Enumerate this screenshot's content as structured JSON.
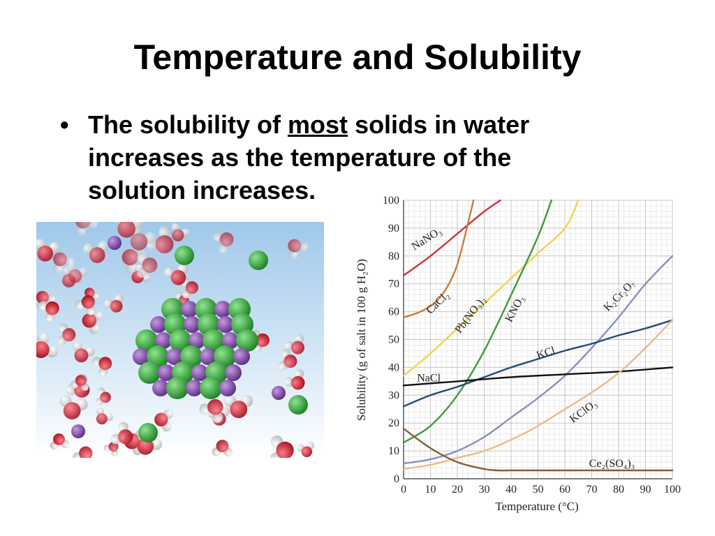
{
  "slide": {
    "title": "Temperature and Solubility",
    "bullet": {
      "symbol": "•",
      "text_before": "The solubility of",
      "emphasis": "most",
      "text_after": "solids in water increases as the temperature of the solution increases."
    }
  },
  "illustration": {
    "description_icon": "dissolving-ionic-crystal-icon",
    "colors": {
      "background_top": "#9fc8ea",
      "background_bottom": "#ffffff",
      "cation": "#8a45b6",
      "anion": "#2fae35",
      "oxygen": "#d51f30",
      "hydrogen": "#f2f2f2"
    }
  },
  "chart_data": {
    "type": "line",
    "xlabel": "Temperature (°C)",
    "ylabel": "Solubility (g of salt in 100 g H₂O)",
    "xlim": [
      0,
      100
    ],
    "ylim": [
      0,
      100
    ],
    "xticks": [
      0,
      10,
      20,
      30,
      40,
      50,
      60,
      70,
      80,
      90,
      100
    ],
    "yticks": [
      0,
      10,
      20,
      30,
      40,
      50,
      60,
      70,
      80,
      90,
      100
    ],
    "grid": true,
    "legend": "none (series labeled inline)",
    "series": [
      {
        "name": "NaNO₃",
        "color": "#c8363c",
        "x": [
          0,
          10,
          20,
          30,
          36
        ],
        "y": [
          73,
          80,
          88,
          96,
          100
        ]
      },
      {
        "name": "CaCl₂",
        "color": "#cf7a34",
        "x": [
          0,
          5,
          10,
          15,
          20,
          25,
          26
        ],
        "y": [
          58,
          59.5,
          62,
          67,
          77,
          96,
          100
        ]
      },
      {
        "name": "Pb(NO₃)₂",
        "color": "#f2d34c",
        "x": [
          0,
          10,
          20,
          30,
          40,
          50,
          60,
          65
        ],
        "y": [
          37,
          45,
          54,
          63,
          72,
          81,
          90,
          100
        ]
      },
      {
        "name": "KNO₃",
        "color": "#3e9a3a",
        "x": [
          0,
          10,
          20,
          30,
          40,
          50,
          55
        ],
        "y": [
          13,
          19,
          30,
          46,
          66,
          87,
          100
        ]
      },
      {
        "name": "K₂Cr₂O₇",
        "color": "#8a8fc0",
        "x": [
          0,
          10,
          20,
          30,
          40,
          50,
          60,
          70,
          80,
          90,
          100
        ],
        "y": [
          5.5,
          7,
          10,
          15,
          22,
          29,
          37,
          47,
          58,
          70,
          80
        ]
      },
      {
        "name": "KCl",
        "color": "#1f4b7c",
        "x": [
          0,
          10,
          20,
          30,
          40,
          50,
          60,
          70,
          80,
          90,
          100
        ],
        "y": [
          26,
          30,
          33,
          36.5,
          40,
          43,
          46,
          48.5,
          51.5,
          54,
          57
        ]
      },
      {
        "name": "NaCl",
        "color": "#111111",
        "x": [
          0,
          20,
          40,
          60,
          80,
          100
        ],
        "y": [
          33.5,
          35,
          36.5,
          37.5,
          38.5,
          40
        ]
      },
      {
        "name": "KClO₃",
        "color": "#efb985",
        "x": [
          0,
          10,
          20,
          30,
          40,
          50,
          60,
          70,
          80,
          90,
          100
        ],
        "y": [
          3.5,
          5,
          7.5,
          10,
          14,
          19,
          25,
          31,
          38,
          47,
          57
        ]
      },
      {
        "name": "Ce₂(SO₄)₃",
        "color": "#8a5a36",
        "x": [
          0,
          10,
          20,
          30,
          35,
          40,
          60,
          80,
          100
        ],
        "y": [
          18,
          11,
          6,
          3.5,
          3,
          3,
          3,
          3,
          3
        ]
      }
    ],
    "annotations": [
      {
        "text": "NaNO₃",
        "x": 4,
        "y": 82,
        "angle": -32
      },
      {
        "text": "CaCl₂",
        "x": 10,
        "y": 59,
        "angle": -44
      },
      {
        "text": "Pb(NO₃)₂",
        "x": 21,
        "y": 52,
        "angle": -53
      },
      {
        "text": "KNO₃",
        "x": 40,
        "y": 56,
        "angle": -62
      },
      {
        "text": "K₂Cr₂O₇",
        "x": 76,
        "y": 60,
        "angle": -45
      },
      {
        "text": "KCl",
        "x": 50,
        "y": 43,
        "angle": -18
      },
      {
        "text": "NaCl",
        "x": 5,
        "y": 35,
        "angle": 0
      },
      {
        "text": "KClO₃",
        "x": 63,
        "y": 20,
        "angle": -36
      },
      {
        "text": "Ce₂(SO₄)₃",
        "x": 69,
        "y": 4.3,
        "angle": 0
      }
    ]
  }
}
